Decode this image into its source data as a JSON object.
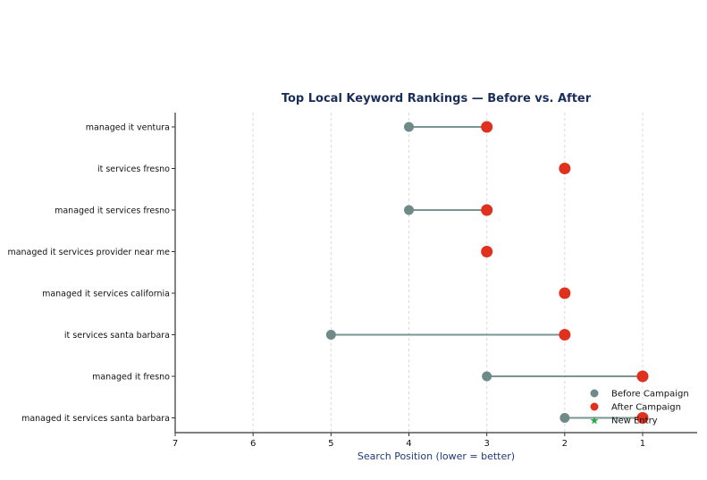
{
  "chart_data": {
    "type": "dumbbell",
    "title": "Top Local Keyword Rankings — Before vs. After",
    "xlabel": "Search Position  (lower = better)",
    "ylabel": "",
    "xlim": [
      7,
      0.3
    ],
    "x_ticks": [
      7,
      6,
      5,
      4,
      3,
      2,
      1
    ],
    "x_inverted": true,
    "grid": "vertical dashed",
    "legend_position": "bottom-right",
    "categories": [
      "managed it ventura",
      "it services fresno",
      "managed it services fresno",
      "managed it services provider near me",
      "managed it services california",
      "it services santa barbara",
      "managed it fresno",
      "managed it services santa barbara"
    ],
    "series": [
      {
        "name": "Before Campaign",
        "color": "#6f8a88",
        "marker": "circle",
        "values": [
          4,
          null,
          4,
          null,
          null,
          5,
          3,
          2
        ]
      },
      {
        "name": "After Campaign",
        "color": "#e0301e",
        "marker": "circle",
        "values": [
          3,
          2,
          3,
          3,
          2,
          2,
          1,
          1
        ]
      },
      {
        "name": "New Entry",
        "color": "#22aa44",
        "marker": "star",
        "values": [
          null,
          null,
          null,
          null,
          null,
          null,
          null,
          null
        ]
      }
    ],
    "connector_color": "#7a9492"
  }
}
